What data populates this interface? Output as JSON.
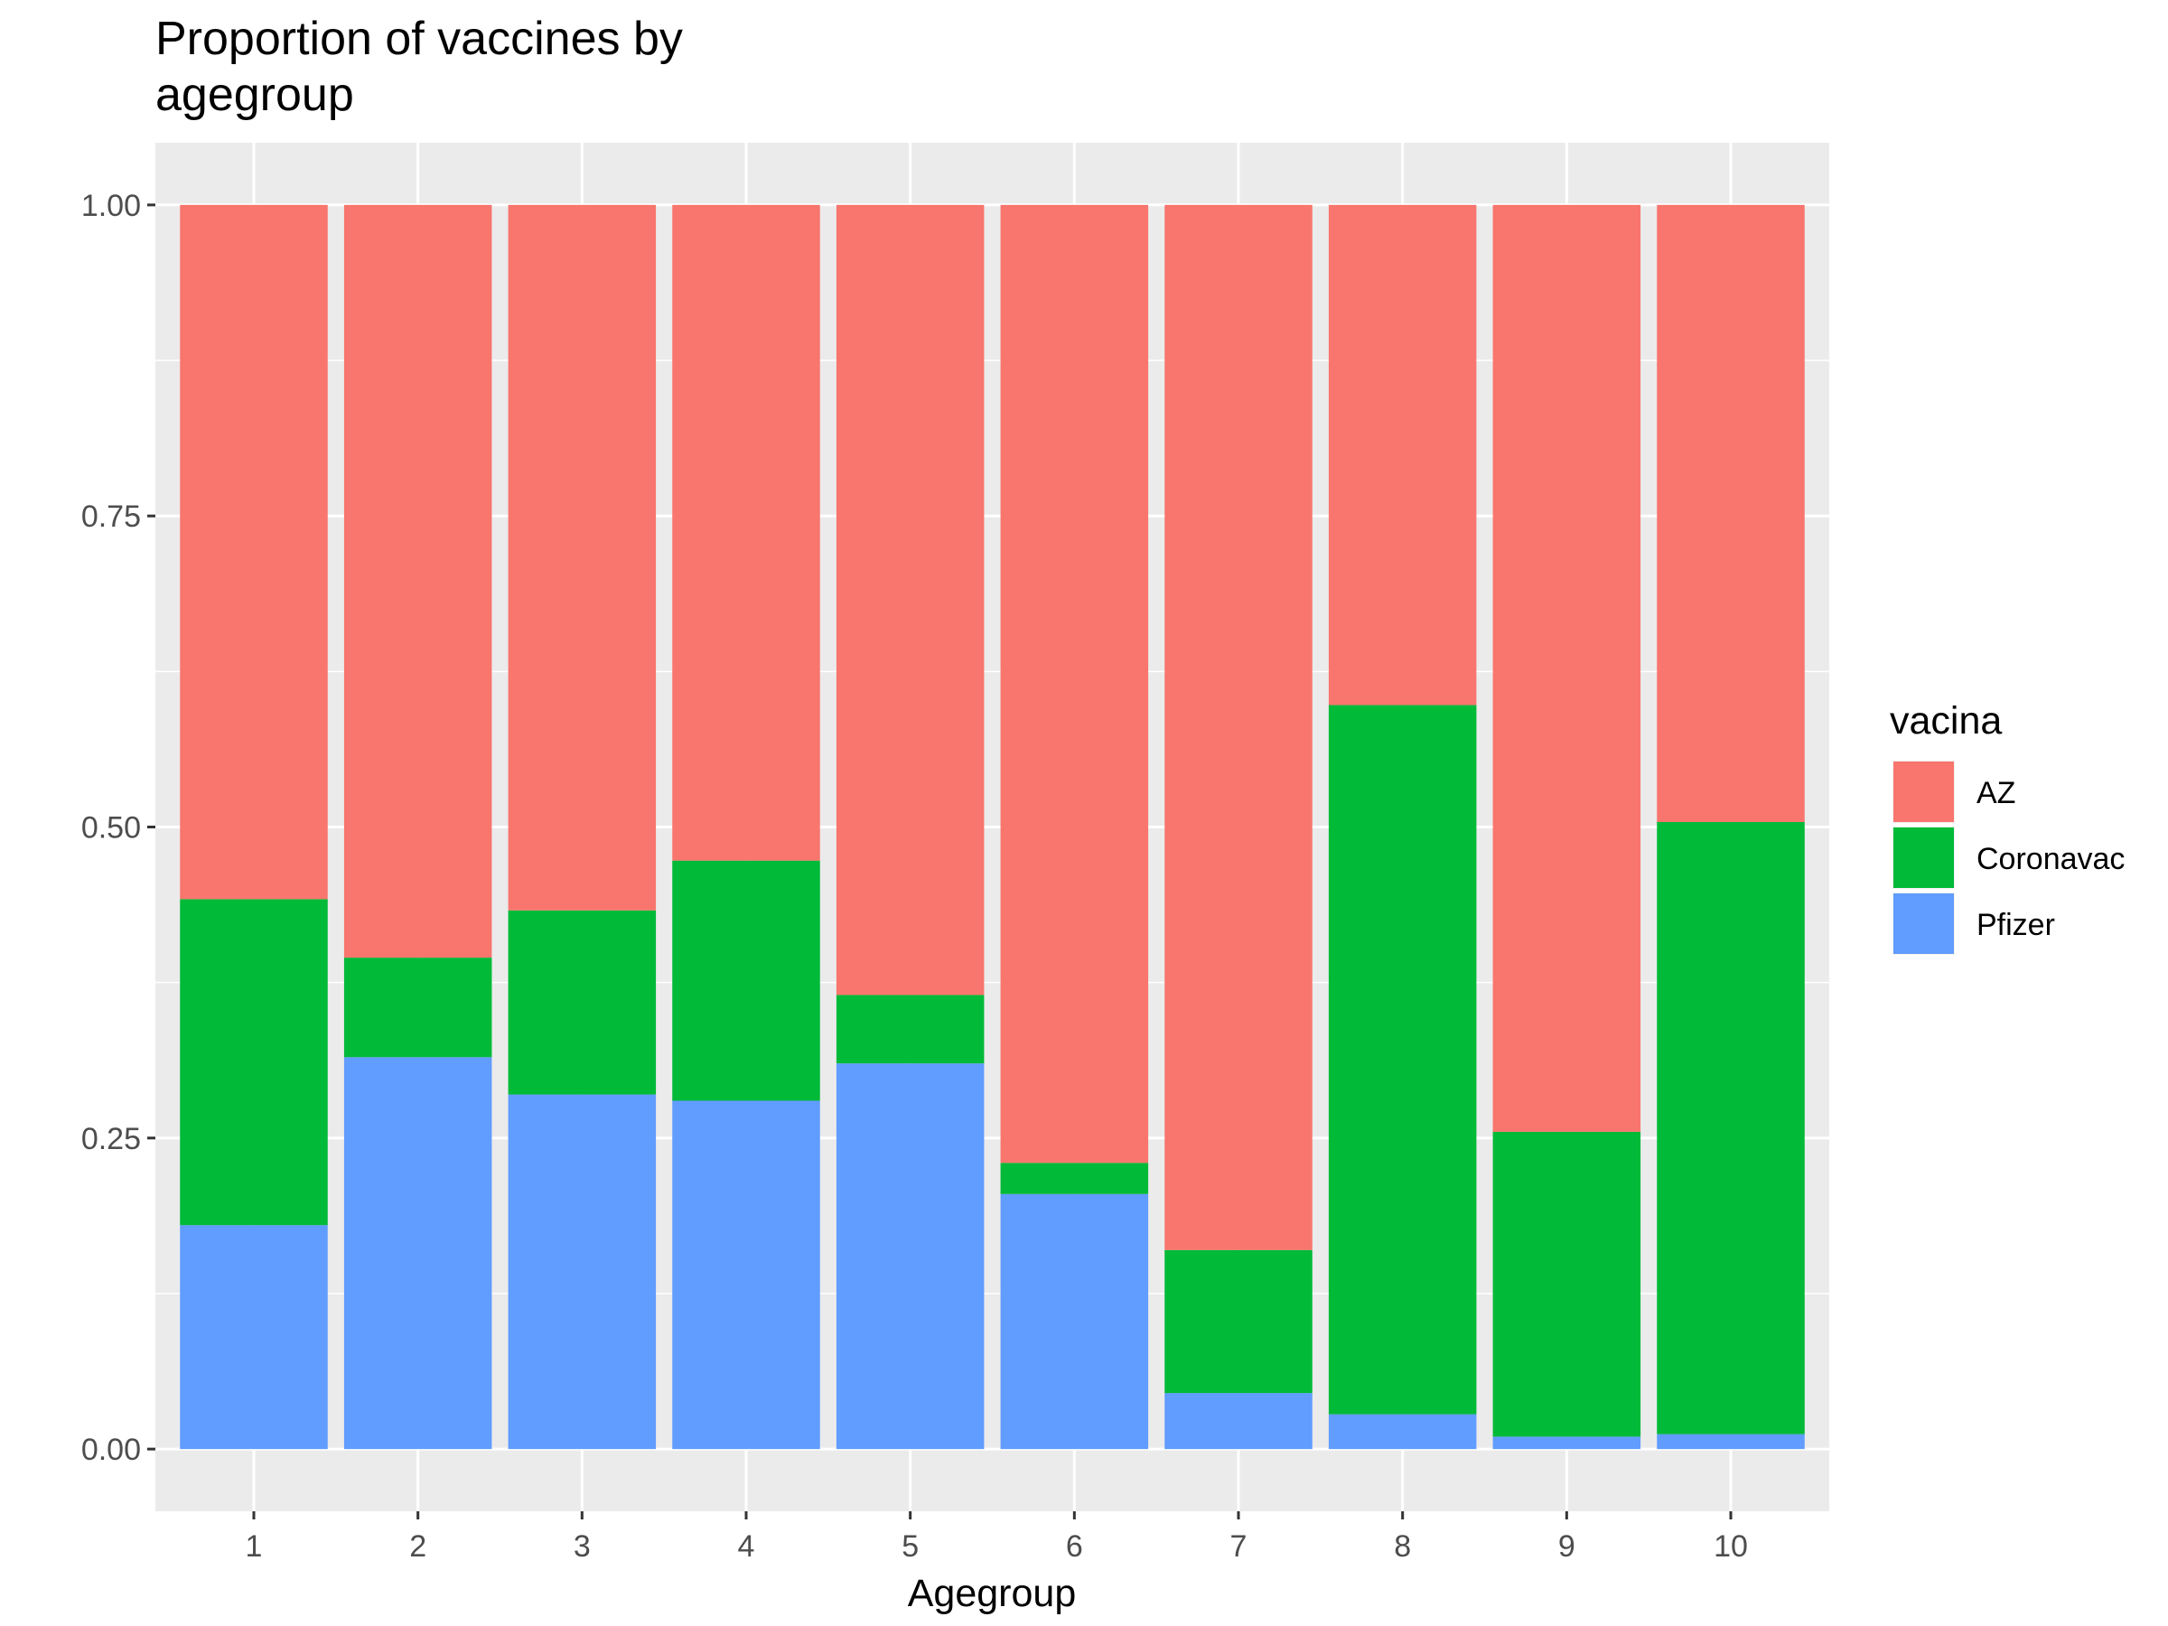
{
  "chart_data": {
    "type": "bar",
    "stacked": true,
    "title_lines": [
      "Proportion of vaccines by",
      "agegroup"
    ],
    "xlabel": "Agegroup",
    "ylabel": "",
    "categories": [
      "1",
      "2",
      "3",
      "4",
      "5",
      "6",
      "7",
      "8",
      "9",
      "10"
    ],
    "ylim": [
      -0.05,
      1.05
    ],
    "yticks": [
      "0.00",
      "0.25",
      "0.50",
      "0.75",
      "1.00"
    ],
    "grid": true,
    "legend": {
      "title": "vacina",
      "position": "right"
    },
    "series": [
      {
        "name": "Pfizer",
        "color": "#619CFF",
        "values": [
          0.18,
          0.315,
          0.285,
          0.28,
          0.31,
          0.205,
          0.045,
          0.028,
          0.01,
          0.012
        ]
      },
      {
        "name": "Coronavac",
        "color": "#00BA38",
        "values": [
          0.262,
          0.08,
          0.148,
          0.193,
          0.055,
          0.025,
          0.115,
          0.57,
          0.245,
          0.492
        ]
      },
      {
        "name": "AZ",
        "color": "#F8766D",
        "values": [
          0.558,
          0.605,
          0.567,
          0.527,
          0.635,
          0.77,
          0.84,
          0.402,
          0.745,
          0.496
        ]
      }
    ],
    "legend_order": [
      "AZ",
      "Coronavac",
      "Pfizer"
    ]
  }
}
